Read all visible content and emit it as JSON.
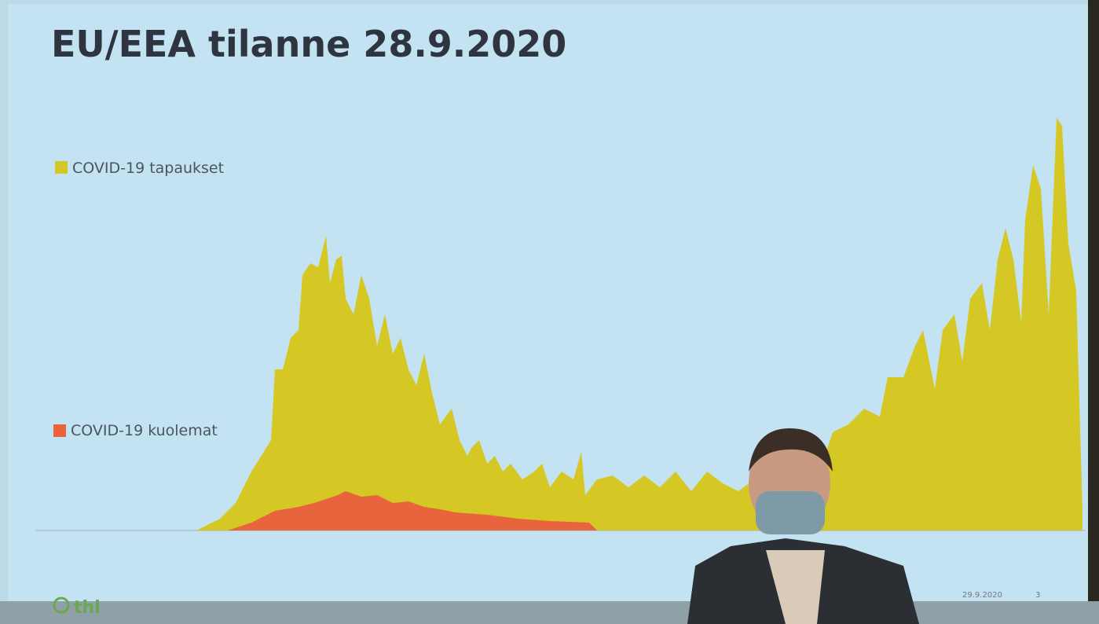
{
  "slide": {
    "title": "EU/EEA tilanne 28.9.2020",
    "legend": [
      "COVID-19 tapaukset",
      "COVID-19 kuolemat"
    ],
    "footer": {
      "logo": "thl",
      "date": "29.9.2020",
      "page": "3"
    }
  }
}
